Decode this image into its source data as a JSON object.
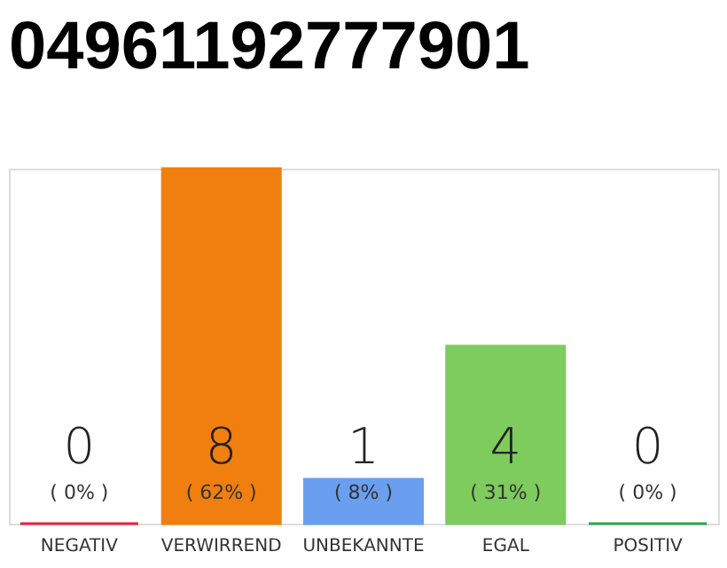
{
  "chart_data": {
    "type": "bar",
    "title": "04961192777901",
    "categories": [
      "NEGATIV",
      "VERWIRREND",
      "UNBEKANNTE",
      "EGAL",
      "POSITIV"
    ],
    "values": [
      0,
      8,
      1,
      4,
      0
    ],
    "colors": [
      "#e3243a",
      "#f07f0f",
      "#6a9ff0",
      "#7ecb5e",
      "#27a84a"
    ],
    "value_labels": [
      "0",
      "8",
      "1",
      "4",
      "0"
    ],
    "annotations": [
      "( 0% )",
      "( 62% )",
      "( 8% )",
      "( 31% )",
      "( 0% )"
    ],
    "tick_labels": "x"
  }
}
